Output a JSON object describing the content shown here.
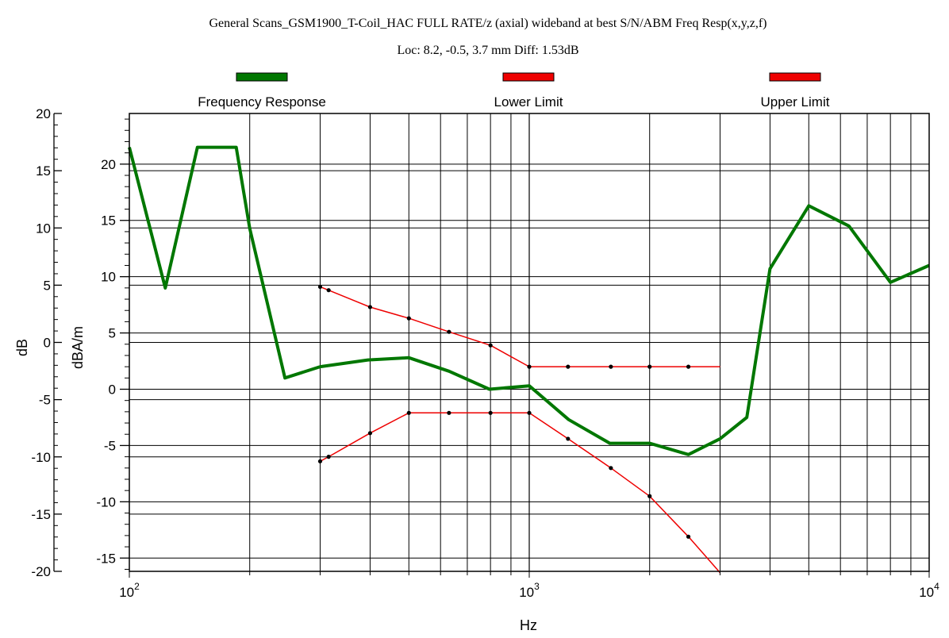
{
  "chart_data": {
    "type": "line",
    "title": "General Scans_GSM1900_T-Coil_HAC FULL RATE/z (axial) wideband at best S/N/ABM Freq Resp(x,y,z,f)",
    "subtitle": "Loc: 8.2, -0.5, 3.7 mm Diff: 1.53dB",
    "xlabel": "Hz",
    "x_scale": "log",
    "xlim": [
      100,
      10000
    ],
    "x_ticks": [
      {
        "value": 100,
        "base": "10",
        "exp": "2"
      },
      {
        "value": 1000,
        "base": "10",
        "exp": "3"
      },
      {
        "value": 10000,
        "base": "10",
        "exp": "4"
      }
    ],
    "y_left": {
      "label": "dB",
      "ylim": [
        -20,
        20
      ],
      "ticks": [
        "20",
        "15",
        "10",
        "5",
        "0",
        "-5",
        "-10",
        "-15",
        "-20"
      ],
      "tick_values": [
        20,
        15,
        10,
        5,
        0,
        -5,
        -10,
        -15,
        -20
      ]
    },
    "y_right": {
      "label": "dBA/m",
      "ylim": [
        -16.18,
        24.5
      ],
      "ticks": [
        "20",
        "15",
        "10",
        "5",
        "0",
        "-5",
        "-10",
        "-15"
      ],
      "tick_values": [
        20,
        15,
        10,
        5,
        0,
        -5,
        -10,
        -15
      ]
    },
    "grid": true,
    "legend_position": "top",
    "series": [
      {
        "name": "Frequency Response",
        "color": "#007700",
        "markers": false,
        "points": [
          [
            100,
            21.5
          ],
          [
            123,
            9.0
          ],
          [
            148,
            21.5
          ],
          [
            185,
            21.5
          ],
          [
            200,
            14.3
          ],
          [
            245,
            1.0
          ],
          [
            300,
            2.0
          ],
          [
            395,
            2.6
          ],
          [
            500,
            2.8
          ],
          [
            630,
            1.6
          ],
          [
            795,
            0.0
          ],
          [
            1000,
            0.3
          ],
          [
            1255,
            -2.7
          ],
          [
            1590,
            -4.8
          ],
          [
            2000,
            -4.8
          ],
          [
            2500,
            -5.8
          ],
          [
            3000,
            -4.4
          ],
          [
            3500,
            -2.5
          ],
          [
            4000,
            10.7
          ],
          [
            5000,
            16.3
          ],
          [
            6300,
            14.5
          ],
          [
            8000,
            9.5
          ],
          [
            10000,
            11.0
          ]
        ]
      },
      {
        "name": "Lower Limit",
        "color": "#ee0000",
        "markers": true,
        "points": [
          [
            300,
            -6.4
          ],
          [
            315,
            -6.0
          ],
          [
            400,
            -3.9
          ],
          [
            500,
            -2.1
          ],
          [
            630,
            -2.1
          ],
          [
            800,
            -2.1
          ],
          [
            1000,
            -2.1
          ],
          [
            1250,
            -4.4
          ],
          [
            1600,
            -7.0
          ],
          [
            2000,
            -9.5
          ],
          [
            2500,
            -13.1
          ],
          [
            3000,
            -16.3
          ]
        ]
      },
      {
        "name": "Upper Limit",
        "color": "#ee0000",
        "markers": true,
        "points": [
          [
            300,
            9.1
          ],
          [
            315,
            8.8
          ],
          [
            400,
            7.3
          ],
          [
            500,
            6.3
          ],
          [
            630,
            5.1
          ],
          [
            800,
            3.9
          ],
          [
            1000,
            2.0
          ],
          [
            1250,
            2.0
          ],
          [
            1600,
            2.0
          ],
          [
            2000,
            2.0
          ],
          [
            2500,
            2.0
          ],
          [
            3000,
            2.0
          ]
        ]
      }
    ]
  }
}
